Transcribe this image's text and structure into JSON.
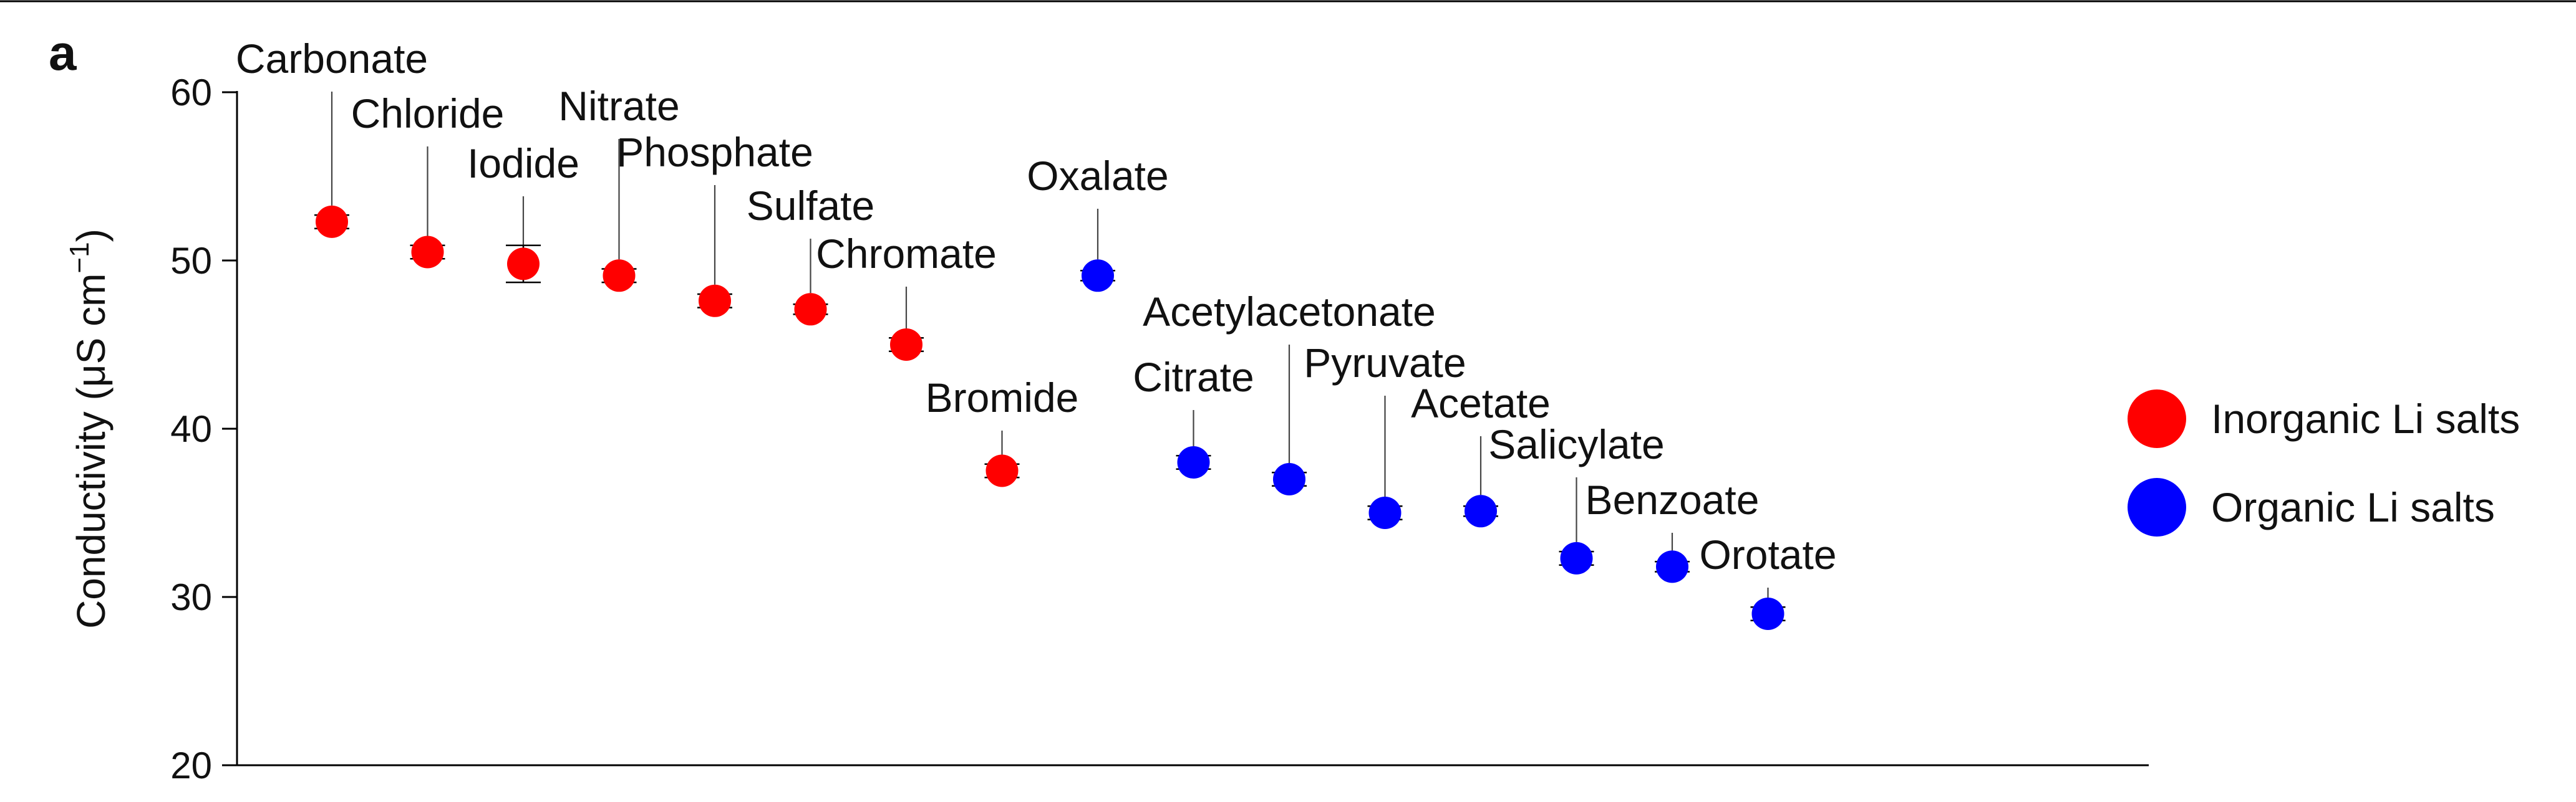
{
  "panel_letter": "a",
  "chart_data": {
    "type": "scatter",
    "ylabel": "Conductivity (μS cm",
    "ylabel_superscript": "−1",
    "ylabel_close": ")",
    "ylim": [
      20,
      60
    ],
    "yticks": [
      20,
      30,
      40,
      50,
      60
    ],
    "grid": false,
    "legend_position": "right",
    "series": [
      {
        "name": "Inorganic Li salts",
        "color": "#ff0000",
        "points": [
          {
            "label": "Carbonate",
            "y": 52.3,
            "err": 0.4
          },
          {
            "label": "Chloride",
            "y": 50.5,
            "err": 0.4
          },
          {
            "label": "Iodide",
            "y": 49.8,
            "err": 1.1
          },
          {
            "label": "Nitrate",
            "y": 49.1,
            "err": 0.4
          },
          {
            "label": "Phosphate",
            "y": 47.6,
            "err": 0.4
          },
          {
            "label": "Sulfate",
            "y": 47.1,
            "err": 0.3
          },
          {
            "label": "Chromate",
            "y": 45.0,
            "err": 0.4
          },
          {
            "label": "Bromide",
            "y": 37.5,
            "err": 0.4
          }
        ]
      },
      {
        "name": "Organic Li salts",
        "color": "#0000ff",
        "points": [
          {
            "label": "Oxalate",
            "y": 49.1,
            "err": 0.3
          },
          {
            "label": "Citrate",
            "y": 38.0,
            "err": 0.4
          },
          {
            "label": "Acetylacetonate",
            "y": 37.0,
            "err": 0.4
          },
          {
            "label": "Pyruvate",
            "y": 35.0,
            "err": 0.4
          },
          {
            "label": "Acetate",
            "y": 35.1,
            "err": 0.3
          },
          {
            "label": "Salicylate",
            "y": 32.3,
            "err": 0.4
          },
          {
            "label": "Benzoate",
            "y": 31.8,
            "err": 0.3
          },
          {
            "label": "Orotate",
            "y": 29.0,
            "err": 0.4
          }
        ]
      }
    ]
  }
}
